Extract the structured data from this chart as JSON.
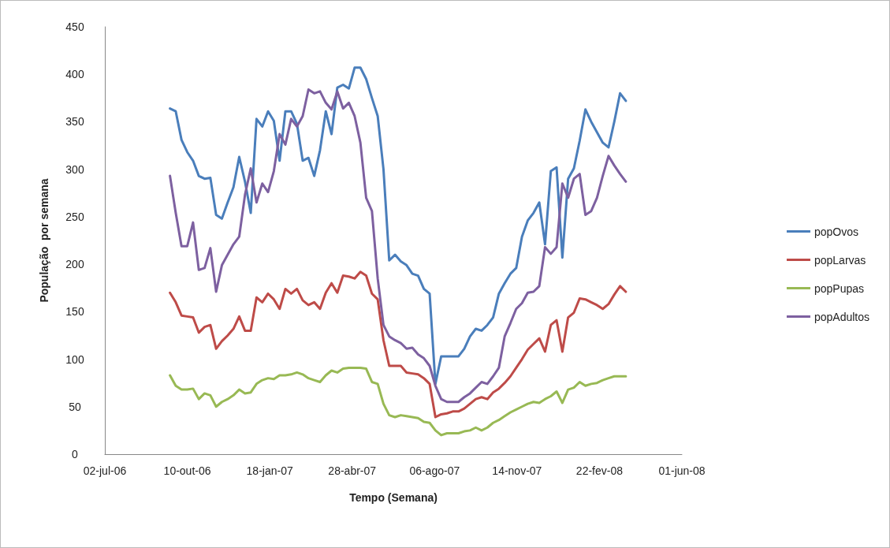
{
  "chart_data": {
    "type": "line",
    "xlabel": "Tempo (Semana)",
    "ylabel": "População  por semana",
    "x": [
      "2006-09-19",
      "2006-09-26",
      "2006-10-03",
      "2006-10-10",
      "2006-10-17",
      "2006-10-24",
      "2006-10-31",
      "2006-11-07",
      "2006-11-14",
      "2006-11-21",
      "2006-11-28",
      "2006-12-05",
      "2006-12-12",
      "2006-12-19",
      "2006-12-26",
      "2007-01-02",
      "2007-01-09",
      "2007-01-16",
      "2007-01-23",
      "2007-01-30",
      "2007-02-06",
      "2007-02-13",
      "2007-02-20",
      "2007-02-27",
      "2007-03-06",
      "2007-03-13",
      "2007-03-20",
      "2007-03-27",
      "2007-04-03",
      "2007-04-10",
      "2007-04-17",
      "2007-04-24",
      "2007-05-01",
      "2007-05-08",
      "2007-05-15",
      "2007-05-22",
      "2007-05-29",
      "2007-06-05",
      "2007-06-12",
      "2007-06-19",
      "2007-06-26",
      "2007-07-03",
      "2007-07-10",
      "2007-07-17",
      "2007-07-24",
      "2007-07-31",
      "2007-08-07",
      "2007-08-14",
      "2007-08-21",
      "2007-08-28",
      "2007-09-04",
      "2007-09-11",
      "2007-09-18",
      "2007-09-25",
      "2007-10-02",
      "2007-10-09",
      "2007-10-16",
      "2007-10-23",
      "2007-10-30",
      "2007-11-06",
      "2007-11-13",
      "2007-11-20",
      "2007-11-27",
      "2007-12-04",
      "2007-12-11",
      "2007-12-18",
      "2007-12-25",
      "2008-01-01",
      "2008-01-08",
      "2008-01-15",
      "2008-01-22",
      "2008-01-29",
      "2008-02-05",
      "2008-02-12",
      "2008-02-19",
      "2008-02-26",
      "2008-03-04",
      "2008-03-11",
      "2008-03-18",
      "2008-03-25"
    ],
    "series": [
      {
        "name": "popOvos",
        "color": "#4a7ebb",
        "values": [
          364,
          361,
          331,
          318,
          309,
          293,
          290,
          291,
          252,
          248,
          265,
          281,
          313,
          287,
          254,
          353,
          345,
          361,
          351,
          309,
          361,
          361,
          348,
          309,
          312,
          293,
          320,
          361,
          337,
          386,
          389,
          385,
          407,
          407,
          395,
          375,
          356,
          300,
          204,
          210,
          203,
          199,
          190,
          188,
          174,
          169,
          74,
          103,
          103,
          103,
          103,
          111,
          124,
          132,
          130,
          136,
          144,
          169,
          180,
          190,
          196,
          229,
          246,
          254,
          265,
          221,
          298,
          302,
          207,
          290,
          301,
          330,
          363,
          350,
          339,
          328,
          323,
          350,
          380,
          372
        ]
      },
      {
        "name": "popLarvas",
        "color": "#be4b48",
        "values": [
          170,
          160,
          146,
          145,
          144,
          128,
          134,
          136,
          111,
          119,
          125,
          132,
          145,
          130,
          130,
          165,
          160,
          169,
          163,
          153,
          174,
          169,
          174,
          162,
          157,
          160,
          153,
          170,
          180,
          170,
          188,
          187,
          185,
          192,
          188,
          169,
          163,
          120,
          93,
          93,
          93,
          86,
          85,
          84,
          80,
          74,
          39,
          42,
          43,
          45,
          45,
          48,
          53,
          58,
          60,
          58,
          65,
          69,
          75,
          82,
          91,
          100,
          110,
          116,
          122,
          108,
          136,
          141,
          108,
          144,
          149,
          164,
          163,
          160,
          157,
          153,
          158,
          168,
          177,
          171
        ]
      },
      {
        "name": "popPupas",
        "color": "#98b954",
        "values": [
          83,
          72,
          68,
          68,
          69,
          58,
          64,
          62,
          50,
          55,
          58,
          62,
          68,
          64,
          65,
          74,
          78,
          80,
          79,
          83,
          83,
          84,
          86,
          84,
          80,
          78,
          76,
          83,
          88,
          86,
          90,
          91,
          91,
          91,
          90,
          76,
          74,
          53,
          41,
          39,
          41,
          40,
          39,
          38,
          34,
          33,
          25,
          20,
          22,
          22,
          22,
          24,
          25,
          28,
          25,
          28,
          33,
          36,
          40,
          44,
          47,
          50,
          53,
          55,
          54,
          58,
          61,
          66,
          54,
          68,
          70,
          76,
          72,
          74,
          75,
          78,
          80,
          82,
          82,
          82
        ]
      },
      {
        "name": "popAdultos",
        "color": "#7d60a0",
        "values": [
          293,
          254,
          219,
          219,
          244,
          194,
          196,
          217,
          171,
          199,
          210,
          221,
          229,
          273,
          301,
          265,
          285,
          276,
          298,
          337,
          326,
          353,
          345,
          356,
          384,
          380,
          382,
          370,
          363,
          382,
          364,
          370,
          356,
          328,
          270,
          256,
          185,
          136,
          124,
          120,
          117,
          111,
          112,
          105,
          101,
          93,
          72,
          58,
          55,
          55,
          55,
          60,
          64,
          70,
          76,
          74,
          82,
          91,
          124,
          138,
          153,
          159,
          170,
          171,
          177,
          218,
          211,
          218,
          285,
          270,
          290,
          295,
          252,
          256,
          270,
          293,
          314,
          304,
          295,
          287
        ]
      }
    ],
    "xlim": [
      "2006-07-02",
      "2008-06-01"
    ],
    "xticks": [
      {
        "value": "2006-07-02",
        "label": "02-jul-06"
      },
      {
        "value": "2006-10-10",
        "label": "10-out-06"
      },
      {
        "value": "2007-01-18",
        "label": "18-jan-07"
      },
      {
        "value": "2007-04-28",
        "label": "28-abr-07"
      },
      {
        "value": "2007-08-06",
        "label": "06-ago-07"
      },
      {
        "value": "2007-11-14",
        "label": "14-nov-07"
      },
      {
        "value": "2008-02-22",
        "label": "22-fev-08"
      },
      {
        "value": "2008-06-01",
        "label": "01-jun-08"
      }
    ],
    "ylim": [
      0,
      450
    ],
    "yticks": [
      0,
      50,
      100,
      150,
      200,
      250,
      300,
      350,
      400,
      450
    ],
    "grid": false,
    "legend": "right",
    "marker": "none",
    "line_style": "solid"
  }
}
